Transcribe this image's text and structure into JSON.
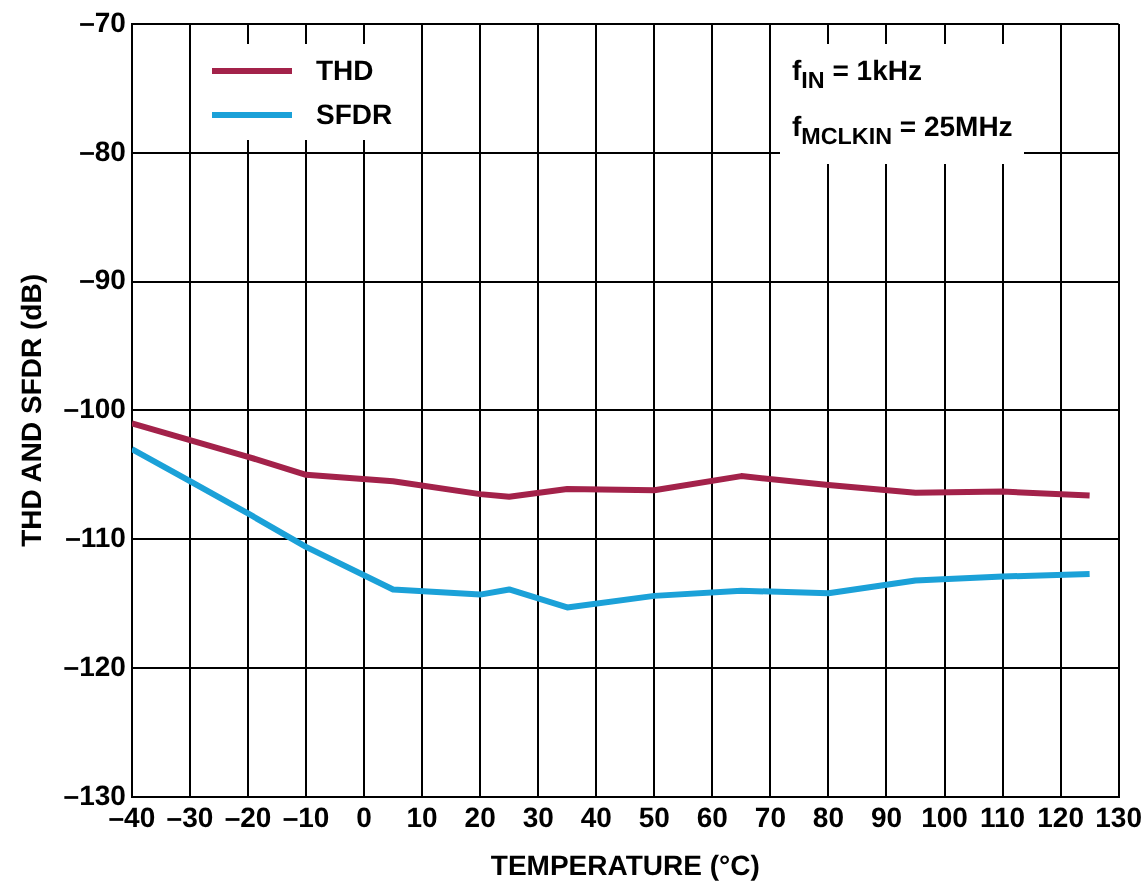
{
  "chart_data": {
    "type": "line",
    "xlabel": "TEMPERATURE (°C)",
    "ylabel": "THD AND SFDR (dB)",
    "annotations": [
      "f$_{IN}$ = 1kHz",
      "f$_{MCLKIN}$ = 25MHz"
    ],
    "xlim": [
      -40,
      130
    ],
    "xticks": [
      {
        "value": -40,
        "label": "–40"
      },
      {
        "value": -30,
        "label": "–30"
      },
      {
        "value": -20,
        "label": "–20"
      },
      {
        "value": -10,
        "label": "–10"
      },
      0,
      10,
      20,
      30,
      40,
      50,
      60,
      70,
      80,
      90,
      100,
      110,
      120,
      130
    ],
    "ylim": [
      -130,
      -70
    ],
    "yticks": [
      {
        "value": -130,
        "label": "–130"
      },
      {
        "value": -120,
        "label": "–120"
      },
      {
        "value": -110,
        "label": "–110"
      },
      {
        "value": -100,
        "label": "–100"
      },
      {
        "value": -90,
        "label": "–90"
      },
      {
        "value": -80,
        "label": "–80"
      },
      {
        "value": -70,
        "label": "–70"
      }
    ],
    "grid": true,
    "legend": "top left",
    "marker": "none",
    "line_style": "solid",
    "series": [
      {
        "name": "THD",
        "color": "#a3224a",
        "x": [
          -40,
          -30,
          -20,
          -10,
          5,
          20,
          25,
          35,
          50,
          65,
          80,
          95,
          110,
          125
        ],
        "values": [
          -101,
          -102.3,
          -103.6,
          -105,
          -105.5,
          -106.5,
          -106.7,
          -106.1,
          -106.2,
          -105.1,
          -105.8,
          -106.4,
          -106.3,
          -106.6
        ]
      },
      {
        "name": "SFDR",
        "color": "#1ba1d8",
        "x": [
          -40,
          -30,
          -20,
          -10,
          5,
          20,
          25,
          35,
          50,
          65,
          80,
          95,
          110,
          125
        ],
        "values": [
          -103,
          -105.5,
          -108,
          -110.6,
          -113.9,
          -114.3,
          -113.9,
          -115.3,
          -114.4,
          -114,
          -114.2,
          -113.2,
          -112.9,
          -112.7
        ]
      }
    ]
  }
}
